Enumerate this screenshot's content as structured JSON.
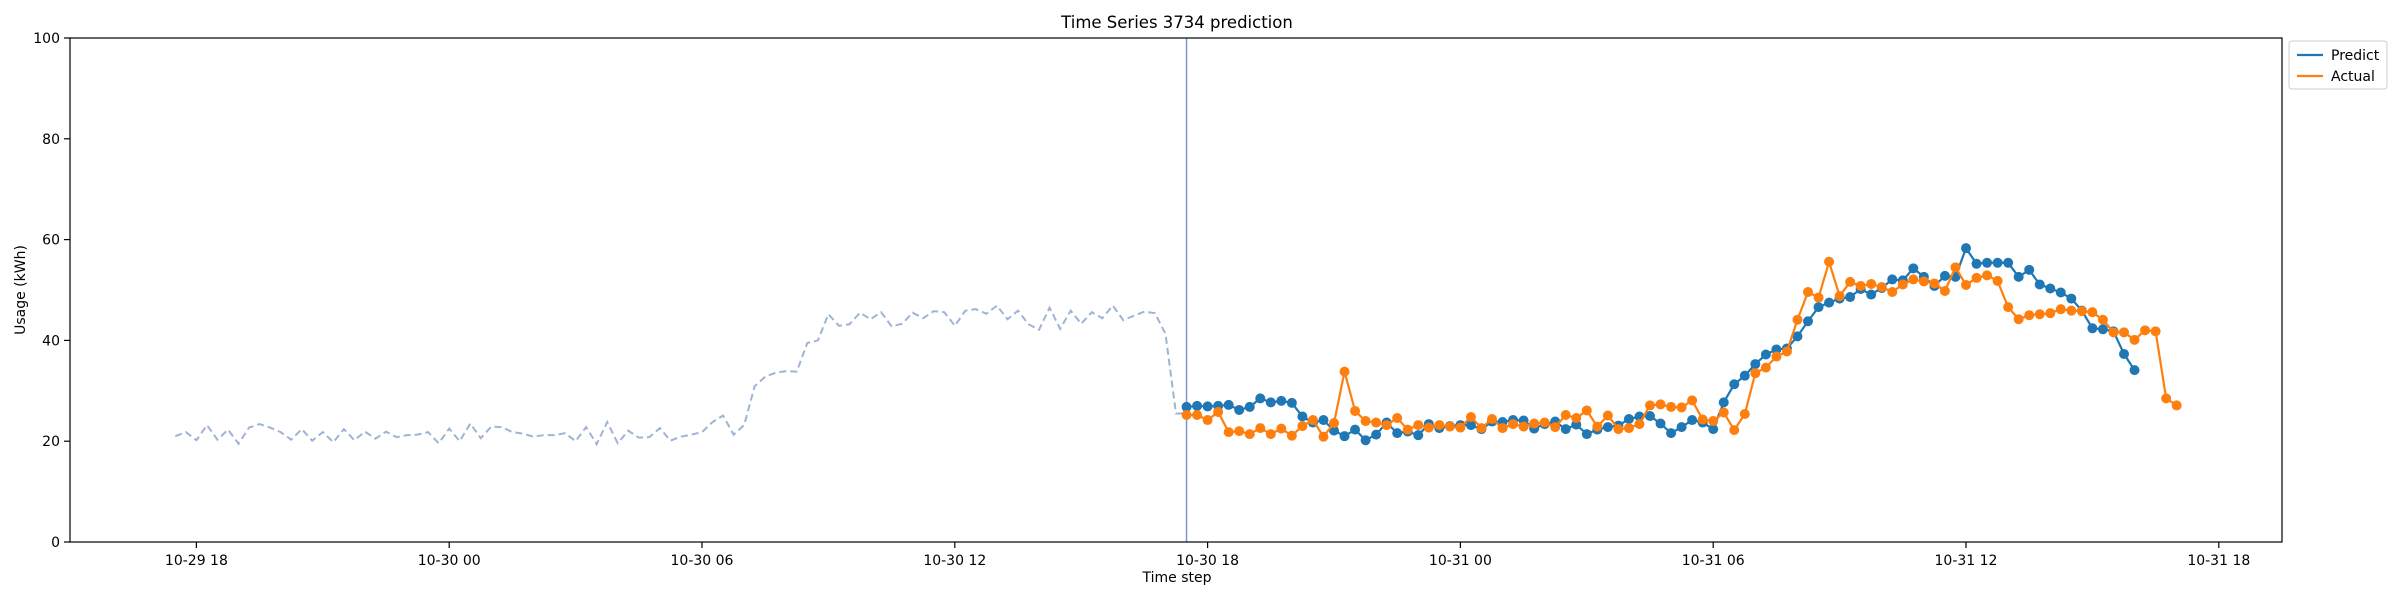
{
  "chart_data": {
    "type": "line",
    "title": "Time Series 3734 prediction",
    "xlabel": "Time step",
    "ylabel": "Usage (kWh)",
    "ylim": [
      0,
      100
    ],
    "yticks": [
      "0",
      "20",
      "40",
      "60",
      "80",
      "100"
    ],
    "xlim": [
      "10-29 15:00",
      "10-31 19:30"
    ],
    "xticks": [
      "10-29 18",
      "10-30 00",
      "10-30 06",
      "10-30 12",
      "10-30 18",
      "10-31 00",
      "10-31 06",
      "10-31 12",
      "10-31 18"
    ],
    "grid": false,
    "legend_position": "upper-right-outside",
    "forecast_start": "10-30 17:30",
    "history": {
      "style": "dashed",
      "color": "#9fb3d6",
      "start": "10-29 17:30",
      "step_minutes": 15,
      "values": [
        21,
        21.8,
        20.2,
        23.2,
        20.3,
        22.3,
        19.5,
        22.7,
        23.4,
        22.7,
        21.8,
        20.3,
        22.4,
        20.1,
        21.8,
        19.8,
        22.4,
        20.2,
        21.9,
        20.5,
        21.9,
        20.8,
        21.2,
        21.3,
        21.8,
        19.6,
        22.5,
        20,
        23.5,
        20.6,
        22.9,
        22.8,
        21.8,
        21.5,
        20.9,
        21.2,
        21.2,
        21.6,
        20,
        22.8,
        19.4,
        23.8,
        19.6,
        22.1,
        20.7,
        20.8,
        22.6,
        20.1,
        20.9,
        21.3,
        21.8,
        23.8,
        25.1,
        21.3,
        23.2,
        30.9,
        32.8,
        33.6,
        33.9,
        33.8,
        39.5,
        40,
        45.2,
        42.9,
        43.2,
        45.5,
        44.2,
        45.6,
        42.8,
        43.3,
        45.5,
        44.4,
        45.8,
        45.6,
        42.9,
        45.9,
        46.2,
        45.3,
        46.9,
        44.2,
        45.9,
        43.2,
        42.1,
        46.5,
        42.3,
        45.9,
        43.3,
        45.6,
        44.4,
        46.9,
        44,
        44.9,
        45.7,
        45.4,
        41.3,
        25.5,
        25.5,
        25
      ]
    },
    "series": [
      {
        "name": "Predict",
        "color": "#1f77b4",
        "start": "10-30 17:30",
        "step_minutes": 15,
        "values": [
          26.8,
          27,
          26.9,
          27,
          27.2,
          26.2,
          26.8,
          28.5,
          27.7,
          28,
          27.6,
          24.9,
          23.7,
          24.2,
          22.1,
          21,
          22.3,
          20.2,
          21.3,
          23.7,
          21.6,
          21.9,
          21.2,
          23.4,
          22.6,
          23,
          23.2,
          23.2,
          22.4,
          23.9,
          23.8,
          24.2,
          24.1,
          22.5,
          23.4,
          23.9,
          22.4,
          23.3,
          21.4,
          22.3,
          22.8,
          23.1,
          24.4,
          24.9,
          25,
          23.5,
          21.6,
          22.8,
          24.2,
          23.7,
          22.4,
          27.7,
          31.3,
          33,
          35.3,
          37.2,
          38.2,
          38.4,
          40.8,
          43.8,
          46.6,
          47.5,
          48.3,
          48.6,
          50.2,
          49.1,
          50.4,
          52.1,
          51.9,
          54.3,
          52.6,
          50.8,
          52.8,
          52.6,
          58.3,
          55.2,
          55.4,
          55.4,
          55.4,
          52.6,
          54,
          51.1,
          50.3,
          49.5,
          48.3,
          45.9,
          42.4,
          42.2,
          41.8,
          37.3,
          34.1
        ]
      },
      {
        "name": "Actual",
        "color": "#ff7f0e",
        "start": "10-30 17:30",
        "step_minutes": 15,
        "values": [
          25.2,
          25.2,
          24.2,
          25.8,
          21.8,
          22,
          21.4,
          22.6,
          21.4,
          22.5,
          21.1,
          23,
          24.2,
          20.9,
          23.6,
          33.8,
          26,
          24,
          23.7,
          23.2,
          24.6,
          22.3,
          23.2,
          22.7,
          23.2,
          22.9,
          22.7,
          24.8,
          22.6,
          24.4,
          22.6,
          23.4,
          22.9,
          23.5,
          23.7,
          22.8,
          25.2,
          24.6,
          26.1,
          22.9,
          25.1,
          22.4,
          22.6,
          23.4,
          27.1,
          27.3,
          26.8,
          26.7,
          28.1,
          24.3,
          24,
          25.7,
          22.2,
          25.4,
          33.5,
          34.6,
          36.8,
          37.8,
          44.1,
          49.6,
          48.5,
          55.6,
          48.8,
          51.6,
          50.8,
          51.2,
          50.6,
          49.6,
          51.1,
          52.1,
          51.7,
          51.3,
          49.8,
          54.5,
          51,
          52.4,
          52.9,
          51.8,
          46.6,
          44.2,
          45,
          45.2,
          45.4,
          46.2,
          45.9,
          45.8,
          45.6,
          44.1,
          41.6,
          41.6,
          40.1,
          42,
          41.8,
          28.5,
          27.1
        ]
      }
    ]
  }
}
